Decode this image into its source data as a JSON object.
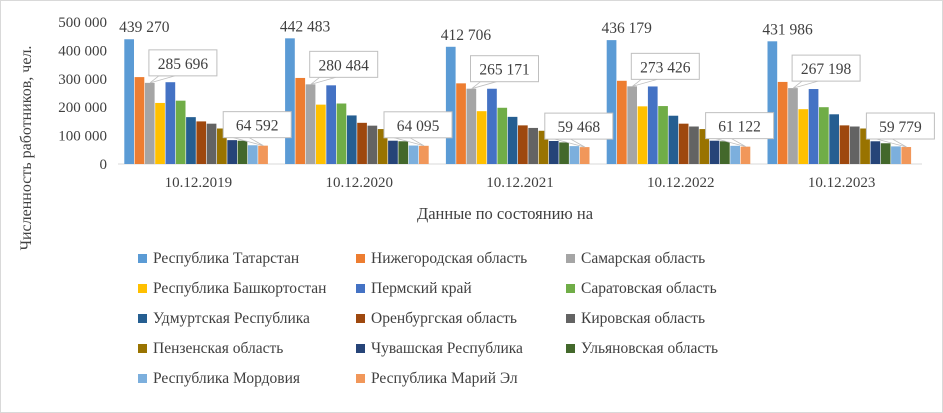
{
  "chart_data": {
    "type": "bar",
    "title": "",
    "xlabel": "Данные по состоянию на",
    "ylabel": "Численность работников, чел.",
    "ylim": [
      0,
      500000
    ],
    "yticks": [
      "0",
      "100 000",
      "200 000",
      "300 000",
      "400 000",
      "500 000"
    ],
    "categories": [
      "10.12.2019",
      "10.12.2020",
      "10.12.2021",
      "10.12.2022",
      "10.12.2023"
    ],
    "grid": false,
    "legend_position": "bottom",
    "series": [
      {
        "name": "Республика Татарстан",
        "color": "#5b9bd5",
        "values": [
          439270,
          442483,
          412706,
          436179,
          431986
        ]
      },
      {
        "name": "Нижегородская область",
        "color": "#ed7d31",
        "values": [
          306000,
          303000,
          284000,
          293000,
          289000
        ]
      },
      {
        "name": "Самарская область",
        "color": "#a5a5a5",
        "values": [
          285696,
          280484,
          265171,
          273426,
          267198
        ]
      },
      {
        "name": "Республика Башкортостан",
        "color": "#ffc000",
        "values": [
          215000,
          209000,
          186000,
          203000,
          193000
        ]
      },
      {
        "name": "Пермский край",
        "color": "#4472c4",
        "values": [
          288000,
          277000,
          265000,
          273000,
          264000
        ]
      },
      {
        "name": "Саратовская область",
        "color": "#70ad47",
        "values": [
          223000,
          213000,
          198000,
          204000,
          200000
        ]
      },
      {
        "name": "Удмуртская Республика",
        "color": "#255e91",
        "values": [
          165000,
          171000,
          166000,
          170000,
          175000
        ]
      },
      {
        "name": "Оренбургская область",
        "color": "#9e480e",
        "values": [
          150000,
          145000,
          136000,
          142000,
          136000
        ]
      },
      {
        "name": "Кировская область",
        "color": "#636363",
        "values": [
          142000,
          135000,
          127000,
          132000,
          132000
        ]
      },
      {
        "name": "Пензенская область",
        "color": "#997300",
        "values": [
          125000,
          123000,
          117000,
          123000,
          125000
        ]
      },
      {
        "name": "Чувашская Республика",
        "color": "#264478",
        "values": [
          84000,
          82000,
          81000,
          82000,
          80000
        ]
      },
      {
        "name": "Ульяновская область",
        "color": "#43682b",
        "values": [
          82000,
          80000,
          76000,
          80000,
          73000
        ]
      },
      {
        "name": "Республика Мордовия",
        "color": "#7cafdd",
        "values": [
          66000,
          65000,
          63000,
          64000,
          62000
        ]
      },
      {
        "name": "Республика Марий Эл",
        "color": "#f1975a",
        "values": [
          64592,
          64095,
          59468,
          61122,
          59779
        ]
      }
    ],
    "data_labels": [
      {
        "series": 0,
        "labels": [
          "439 270",
          "442 483",
          "412 706",
          "436 179",
          "431 986"
        ]
      },
      {
        "series": 2,
        "labels": [
          "285 696",
          "280 484",
          "265 171",
          "273 426",
          "267 198"
        ]
      },
      {
        "series": 13,
        "labels": [
          "64 592",
          "64 095",
          "59 468",
          "61 122",
          "59 779"
        ]
      }
    ]
  }
}
